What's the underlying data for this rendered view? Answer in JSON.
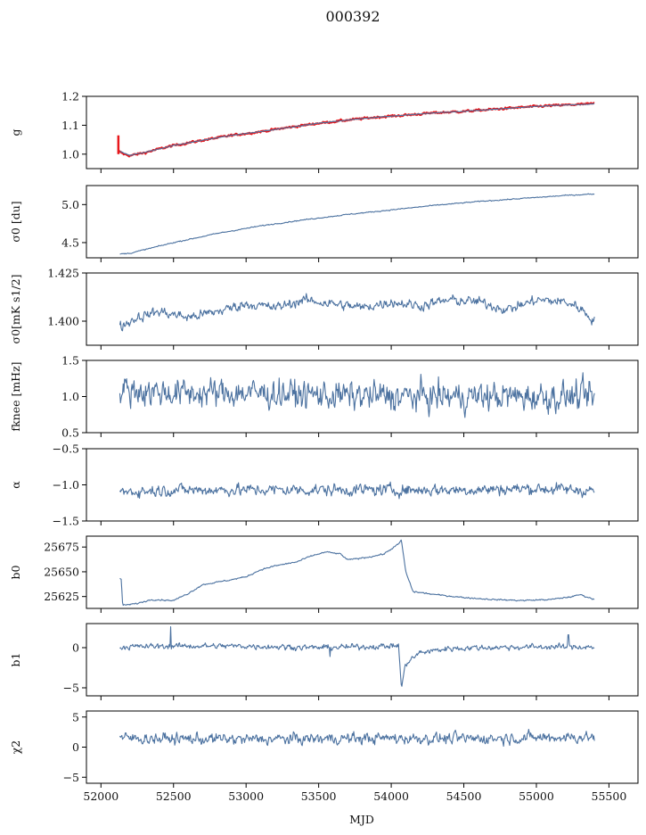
{
  "chart_data": {
    "type": "line",
    "title": "000392",
    "xlabel": "MJD",
    "xlim": [
      51900,
      55700
    ],
    "xticks": [
      "52000",
      "52500",
      "53000",
      "53500",
      "54000",
      "54500",
      "55000",
      "55500"
    ],
    "line_color": "#4c72a0",
    "highlight_color": "#e8171b",
    "panels": [
      {
        "id": "g",
        "ylabel": "g",
        "ylim": [
          0.95,
          1.2
        ],
        "yticks": [
          "1.0",
          "1.1",
          "1.2"
        ],
        "ytick_values": [
          1.0,
          1.1,
          1.2
        ],
        "series": [
          {
            "points": [
              [
                52120,
                1.01
              ],
              [
                52160,
                1.0
              ],
              [
                52200,
                0.995
              ],
              [
                52300,
                1.005
              ],
              [
                52400,
                1.018
              ],
              [
                52500,
                1.03
              ],
              [
                52700,
                1.048
              ],
              [
                52900,
                1.065
              ],
              [
                53100,
                1.078
              ],
              [
                53300,
                1.093
              ],
              [
                53500,
                1.107
              ],
              [
                53700,
                1.118
              ],
              [
                53900,
                1.128
              ],
              [
                54100,
                1.135
              ],
              [
                54300,
                1.143
              ],
              [
                54500,
                1.148
              ],
              [
                54700,
                1.155
              ],
              [
                54900,
                1.162
              ],
              [
                55100,
                1.168
              ],
              [
                55300,
                1.172
              ],
              [
                55400,
                1.175
              ]
            ],
            "noise": 0.003,
            "color": "red-highlight"
          },
          {
            "points": [
              [
                52130,
                1.01
              ],
              [
                52200,
                0.996
              ],
              [
                52300,
                1.006
              ],
              [
                52500,
                1.03
              ],
              [
                52700,
                1.048
              ],
              [
                52900,
                1.065
              ],
              [
                53100,
                1.078
              ],
              [
                53300,
                1.093
              ],
              [
                53500,
                1.107
              ],
              [
                53700,
                1.118
              ],
              [
                53900,
                1.128
              ],
              [
                54100,
                1.135
              ],
              [
                54300,
                1.143
              ],
              [
                54500,
                1.148
              ],
              [
                54700,
                1.155
              ],
              [
                54900,
                1.162
              ],
              [
                55100,
                1.168
              ],
              [
                55300,
                1.172
              ],
              [
                55400,
                1.174
              ]
            ],
            "noise": 0.001,
            "color": "line"
          }
        ],
        "spike": {
          "x": 52120,
          "y_low": 1.0,
          "y_high": 1.065
        }
      },
      {
        "id": "sigma0",
        "ylabel": "σ0 [du]",
        "ylim": [
          4.3,
          5.25
        ],
        "yticks": [
          "4.5",
          "5.0"
        ],
        "ytick_values": [
          4.5,
          5.0
        ],
        "series": [
          {
            "points": [
              [
                52130,
                4.35
              ],
              [
                52200,
                4.36
              ],
              [
                52500,
                4.5
              ],
              [
                52800,
                4.62
              ],
              [
                53100,
                4.72
              ],
              [
                53400,
                4.8
              ],
              [
                53700,
                4.87
              ],
              [
                54000,
                4.93
              ],
              [
                54300,
                4.99
              ],
              [
                54600,
                5.04
              ],
              [
                54900,
                5.08
              ],
              [
                55200,
                5.12
              ],
              [
                55400,
                5.14
              ]
            ],
            "noise": 0.006,
            "color": "line"
          }
        ]
      },
      {
        "id": "sigma0b",
        "ylabel": "σ0[mK s1/2]",
        "ylim": [
          1.3875,
          1.425
        ],
        "yticks": [
          "1.400",
          "1.425"
        ],
        "ytick_values": [
          1.4,
          1.425
        ],
        "series": [
          {
            "points": [
              [
                52130,
                1.397
              ],
              [
                52250,
                1.402
              ],
              [
                52400,
                1.405
              ],
              [
                52600,
                1.402
              ],
              [
                52800,
                1.405
              ],
              [
                53000,
                1.409
              ],
              [
                53200,
                1.407
              ],
              [
                53400,
                1.411
              ],
              [
                53600,
                1.409
              ],
              [
                53800,
                1.407
              ],
              [
                54000,
                1.41
              ],
              [
                54200,
                1.408
              ],
              [
                54400,
                1.411
              ],
              [
                54600,
                1.41
              ],
              [
                54800,
                1.406
              ],
              [
                55000,
                1.411
              ],
              [
                55200,
                1.41
              ],
              [
                55300,
                1.407
              ],
              [
                55400,
                1.4
              ]
            ],
            "noise": 0.0022,
            "color": "line"
          }
        ]
      },
      {
        "id": "fknee",
        "ylabel": "fknee [mHz]",
        "ylim": [
          0.5,
          1.5
        ],
        "yticks": [
          "0.5",
          "1.0",
          "1.5"
        ],
        "ytick_values": [
          0.5,
          1.0,
          1.5
        ],
        "series": [
          {
            "points": [
              [
                52130,
                1.1
              ],
              [
                52500,
                1.05
              ],
              [
                53000,
                1.05
              ],
              [
                53500,
                1.02
              ],
              [
                54000,
                1.0
              ],
              [
                54500,
                1.0
              ],
              [
                55000,
                1.0
              ],
              [
                55400,
                1.0
              ]
            ],
            "noise": 0.17,
            "color": "line"
          }
        ]
      },
      {
        "id": "alpha",
        "ylabel": "α",
        "ylim": [
          -1.5,
          -0.5
        ],
        "yticks": [
          "−1.5",
          "−1.0",
          "−0.5"
        ],
        "ytick_values": [
          -1.5,
          -1.0,
          -0.5
        ],
        "series": [
          {
            "points": [
              [
                52130,
                -1.1
              ],
              [
                52500,
                -1.07
              ],
              [
                53000,
                -1.07
              ],
              [
                53500,
                -1.07
              ],
              [
                54000,
                -1.07
              ],
              [
                54500,
                -1.07
              ],
              [
                55000,
                -1.05
              ],
              [
                55400,
                -1.08
              ]
            ],
            "noise": 0.07,
            "color": "line"
          }
        ]
      },
      {
        "id": "b0",
        "ylabel": "b0",
        "ylim": [
          25613,
          25686
        ],
        "yticks": [
          "25625",
          "25650",
          "25675"
        ],
        "ytick_values": [
          25625,
          25650,
          25675
        ],
        "series": [
          {
            "points": [
              [
                52130,
                25643
              ],
              [
                52140,
                25642
              ],
              [
                52150,
                25616
              ],
              [
                52250,
                25618
              ],
              [
                52350,
                25622
              ],
              [
                52500,
                25621
              ],
              [
                52600,
                25628
              ],
              [
                52700,
                25637
              ],
              [
                52900,
                25642
              ],
              [
                53000,
                25645
              ],
              [
                53100,
                25652
              ],
              [
                53200,
                25656
              ],
              [
                53350,
                25660
              ],
              [
                53450,
                25666
              ],
              [
                53550,
                25670
              ],
              [
                53650,
                25668
              ],
              [
                53700,
                25662
              ],
              [
                53850,
                25665
              ],
              [
                53950,
                25668
              ],
              [
                54050,
                25678
              ],
              [
                54070,
                25682
              ],
              [
                54100,
                25650
              ],
              [
                54150,
                25630
              ],
              [
                54300,
                25627
              ],
              [
                54500,
                25624
              ],
              [
                54700,
                25622
              ],
              [
                54900,
                25621
              ],
              [
                55100,
                25622
              ],
              [
                55250,
                25625
              ],
              [
                55300,
                25627
              ],
              [
                55400,
                25622
              ]
            ],
            "noise": 0.6,
            "color": "line"
          }
        ]
      },
      {
        "id": "b1",
        "ylabel": "b1",
        "ylim": [
          -6,
          3
        ],
        "yticks": [
          "−5",
          "0"
        ],
        "ytick_values": [
          -5,
          0
        ],
        "series": [
          {
            "points": [
              [
                52130,
                0.1
              ],
              [
                52500,
                0.2
              ],
              [
                53000,
                0.2
              ],
              [
                53500,
                0.0
              ],
              [
                54000,
                0.2
              ],
              [
                54050,
                0.3
              ],
              [
                54070,
                -5.0
              ],
              [
                54100,
                -2.0
              ],
              [
                54200,
                -0.6
              ],
              [
                54400,
                -0.1
              ],
              [
                54600,
                0.0
              ],
              [
                55000,
                0.1
              ],
              [
                55400,
                0.1
              ]
            ],
            "noise": 0.3,
            "color": "line"
          }
        ],
        "spikes": [
          {
            "x": 52480,
            "y": 2.6
          },
          {
            "x": 53580,
            "y": -1.1
          },
          {
            "x": 55220,
            "y": 1.6
          }
        ]
      },
      {
        "id": "chi2",
        "ylabel": "χ2",
        "ylim": [
          -6,
          6
        ],
        "yticks": [
          "−5",
          "0",
          "5"
        ],
        "ytick_values": [
          -5,
          0,
          5
        ],
        "series": [
          {
            "points": [
              [
                52130,
                1.5
              ],
              [
                52500,
                1.4
              ],
              [
                53000,
                1.3
              ],
              [
                53500,
                1.4
              ],
              [
                54000,
                1.5
              ],
              [
                54500,
                1.4
              ],
              [
                55000,
                1.6
              ],
              [
                55400,
                1.7
              ]
            ],
            "noise": 0.8,
            "color": "line"
          }
        ]
      }
    ]
  }
}
